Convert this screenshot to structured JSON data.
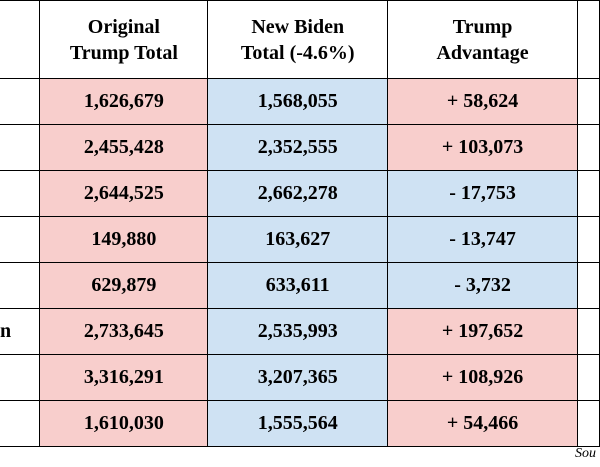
{
  "table": {
    "header": {
      "trump": "Original\nTrump Total",
      "biden": "New Biden\nTotal (-4.6%)",
      "advantage": "Trump\nAdvantage"
    },
    "colors": {
      "trump": "#f8cecc",
      "biden": "#cfe2f3"
    },
    "rows": [
      {
        "trump": "1,626,679",
        "biden": "1,568,055",
        "advantage": "+ 58,624",
        "advantage_fill": "trump"
      },
      {
        "trump": "2,455,428",
        "biden": "2,352,555",
        "advantage": "+ 103,073",
        "advantage_fill": "trump"
      },
      {
        "trump": "2,644,525",
        "biden": "2,662,278",
        "advantage": "- 17,753",
        "advantage_fill": "biden"
      },
      {
        "trump": "149,880",
        "biden": "163,627",
        "advantage": "- 13,747",
        "advantage_fill": "biden"
      },
      {
        "trump": "629,879",
        "biden": "633,611",
        "advantage": "- 3,732",
        "advantage_fill": "biden"
      },
      {
        "label": "n",
        "trump": "2,733,645",
        "biden": "2,535,993",
        "advantage": "+ 197,652",
        "advantage_fill": "trump"
      },
      {
        "trump": "3,316,291",
        "biden": "3,207,365",
        "advantage": "+ 108,926",
        "advantage_fill": "trump"
      },
      {
        "trump": "1,610,030",
        "biden": "1,555,564",
        "advantage": "+ 54,466",
        "advantage_fill": "trump"
      }
    ]
  },
  "source": "Sou"
}
